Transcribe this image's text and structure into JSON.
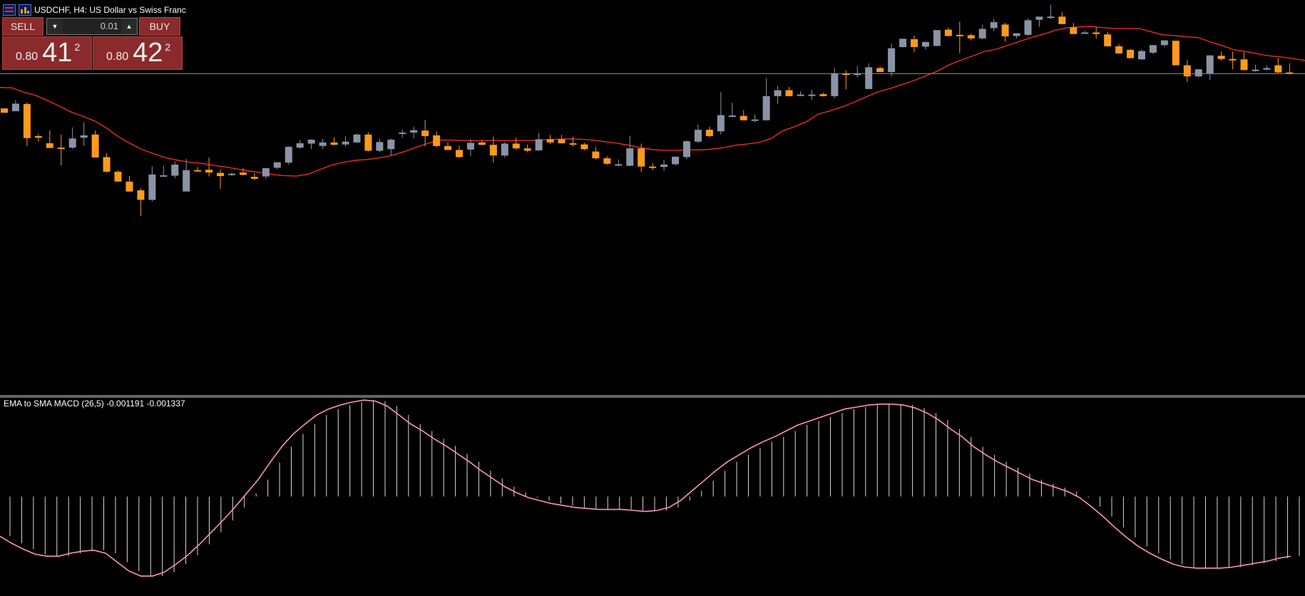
{
  "window": {
    "title": "USDCHF, H4:  US Dollar vs Swiss Franc"
  },
  "trade_panel": {
    "sell_label": "SELL",
    "buy_label": "BUY",
    "lot_value": "0.01",
    "sell_price_small": "0.80",
    "sell_price_big": "41",
    "sell_price_sup": "2",
    "buy_price_small": "0.80",
    "buy_price_big": "42",
    "buy_price_sup": "2"
  },
  "indicator": {
    "label": "EMA to SMA MACD (26,5) -0.001191 -0.001337"
  },
  "colors": {
    "bull": "#8a94a6",
    "bear": "#ff9a1a",
    "ma": "#ff2a2a",
    "signal": "#ff8fc8",
    "histogram": "#d8d8d8",
    "bid_line": "#8c96a8"
  },
  "chart_data": [
    {
      "type": "candlestick",
      "ylim": [
        -1000,
        0
      ],
      "note": "price scale not shown",
      "bid_line": -186,
      "candles": [
        {
          "o": -274,
          "h": -274,
          "l": -285,
          "c": -285
        },
        {
          "o": -281,
          "h": -253,
          "l": -281,
          "c": -262
        },
        {
          "o": -263,
          "h": -259,
          "l": -369,
          "c": -349
        },
        {
          "o": -344,
          "h": -339,
          "l": -358,
          "c": -348
        },
        {
          "o": -362,
          "h": -329,
          "l": -372,
          "c": -374
        },
        {
          "o": -373,
          "h": -340,
          "l": -418,
          "c": -374
        },
        {
          "o": -373,
          "h": -322,
          "l": -377,
          "c": -350
        },
        {
          "o": -348,
          "h": -309,
          "l": -369,
          "c": -342
        },
        {
          "o": -340,
          "h": -330,
          "l": -397,
          "c": -398
        },
        {
          "o": -397,
          "h": -387,
          "l": -436,
          "c": -434
        },
        {
          "o": -434,
          "h": -431,
          "l": -457,
          "c": -459
        },
        {
          "o": -459,
          "h": -445,
          "l": -485,
          "c": -484
        },
        {
          "o": -481,
          "h": -476,
          "l": -546,
          "c": -505
        },
        {
          "o": -505,
          "h": -420,
          "l": -509,
          "c": -441
        },
        {
          "o": -443,
          "h": -419,
          "l": -444,
          "c": -443
        },
        {
          "o": -444,
          "h": -408,
          "l": -450,
          "c": -416
        },
        {
          "o": -484,
          "h": -402,
          "l": -484,
          "c": -430
        },
        {
          "o": -430,
          "h": -422,
          "l": -433,
          "c": -431
        },
        {
          "o": -429,
          "h": -398,
          "l": -446,
          "c": -436
        },
        {
          "o": -437,
          "h": -428,
          "l": -477,
          "c": -445
        },
        {
          "o": -439,
          "h": -436,
          "l": -445,
          "c": -439
        },
        {
          "o": -436,
          "h": -425,
          "l": -443,
          "c": -442
        },
        {
          "o": -447,
          "h": -437,
          "l": -455,
          "c": -452
        },
        {
          "o": -446,
          "h": -424,
          "l": -452,
          "c": -425
        },
        {
          "o": -424,
          "h": -410,
          "l": -428,
          "c": -410
        },
        {
          "o": -411,
          "h": -370,
          "l": -416,
          "c": -371
        },
        {
          "o": -373,
          "h": -354,
          "l": -376,
          "c": -362
        },
        {
          "o": -363,
          "h": -352,
          "l": -377,
          "c": -353
        },
        {
          "o": -369,
          "h": -351,
          "l": -377,
          "c": -360
        },
        {
          "o": -360,
          "h": -347,
          "l": -368,
          "c": -366
        },
        {
          "o": -365,
          "h": -344,
          "l": -370,
          "c": -358
        },
        {
          "o": -360,
          "h": -338,
          "l": -361,
          "c": -340
        },
        {
          "o": -340,
          "h": -334,
          "l": -383,
          "c": -381
        },
        {
          "o": -381,
          "h": -351,
          "l": -385,
          "c": -359
        },
        {
          "o": -377,
          "h": -350,
          "l": -394,
          "c": -353
        },
        {
          "o": -337,
          "h": -327,
          "l": -348,
          "c": -335
        },
        {
          "o": -335,
          "h": -320,
          "l": -350,
          "c": -329
        },
        {
          "o": -330,
          "h": -303,
          "l": -370,
          "c": -344
        },
        {
          "o": -342,
          "h": -332,
          "l": -372,
          "c": -369
        },
        {
          "o": -369,
          "h": -359,
          "l": -377,
          "c": -379
        },
        {
          "o": -379,
          "h": -368,
          "l": -399,
          "c": -397
        },
        {
          "o": -378,
          "h": -351,
          "l": -395,
          "c": -361
        },
        {
          "o": -360,
          "h": -355,
          "l": -368,
          "c": -366
        },
        {
          "o": -366,
          "h": -345,
          "l": -411,
          "c": -393
        },
        {
          "o": -393,
          "h": -359,
          "l": -398,
          "c": -363
        },
        {
          "o": -363,
          "h": -348,
          "l": -379,
          "c": -375
        },
        {
          "o": -375,
          "h": -365,
          "l": -385,
          "c": -381
        },
        {
          "o": -380,
          "h": -336,
          "l": -382,
          "c": -352
        },
        {
          "o": -352,
          "h": -341,
          "l": -364,
          "c": -360
        },
        {
          "o": -352,
          "h": -341,
          "l": -363,
          "c": -362
        },
        {
          "o": -362,
          "h": -346,
          "l": -370,
          "c": -363
        },
        {
          "o": -365,
          "h": -361,
          "l": -380,
          "c": -377
        },
        {
          "o": -383,
          "h": -372,
          "l": -403,
          "c": -400
        },
        {
          "o": -400,
          "h": -395,
          "l": -416,
          "c": -414
        },
        {
          "o": -415,
          "h": -403,
          "l": -421,
          "c": -415
        },
        {
          "o": -419,
          "h": -343,
          "l": -420,
          "c": -375
        },
        {
          "o": -375,
          "h": -363,
          "l": -435,
          "c": -421
        },
        {
          "o": -421,
          "h": -412,
          "l": -430,
          "c": -422
        },
        {
          "o": -422,
          "h": -404,
          "l": -432,
          "c": -416
        },
        {
          "o": -415,
          "h": -400,
          "l": -418,
          "c": -396
        },
        {
          "o": -397,
          "h": -355,
          "l": -402,
          "c": -357
        },
        {
          "o": -358,
          "h": -315,
          "l": -361,
          "c": -328
        },
        {
          "o": -328,
          "h": -320,
          "l": -347,
          "c": -344
        },
        {
          "o": -332,
          "h": -233,
          "l": -340,
          "c": -291
        },
        {
          "o": -292,
          "h": -260,
          "l": -293,
          "c": -292
        },
        {
          "o": -293,
          "h": -278,
          "l": -304,
          "c": -304
        },
        {
          "o": -302,
          "h": -289,
          "l": -309,
          "c": -302
        },
        {
          "o": -304,
          "h": -197,
          "l": -304,
          "c": -243
        },
        {
          "o": -243,
          "h": -217,
          "l": -262,
          "c": -228
        },
        {
          "o": -228,
          "h": -220,
          "l": -243,
          "c": -243
        },
        {
          "o": -239,
          "h": -231,
          "l": -243,
          "c": -239
        },
        {
          "o": -239,
          "h": -227,
          "l": -252,
          "c": -239
        },
        {
          "o": -238,
          "h": -234,
          "l": -244,
          "c": -243
        },
        {
          "o": -243,
          "h": -172,
          "l": -248,
          "c": -186
        },
        {
          "o": -186,
          "h": -178,
          "l": -226,
          "c": -188
        },
        {
          "o": -188,
          "h": -167,
          "l": -196,
          "c": -186
        },
        {
          "o": -225,
          "h": -160,
          "l": -225,
          "c": -170
        },
        {
          "o": -172,
          "h": -168,
          "l": -181,
          "c": -182
        },
        {
          "o": -182,
          "h": -110,
          "l": -193,
          "c": -122
        },
        {
          "o": -119,
          "h": -98,
          "l": -120,
          "c": -98
        },
        {
          "o": -99,
          "h": -90,
          "l": -132,
          "c": -119
        },
        {
          "o": -118,
          "h": -108,
          "l": -125,
          "c": -106
        },
        {
          "o": -116,
          "h": -80,
          "l": -117,
          "c": -76
        },
        {
          "o": -75,
          "h": -70,
          "l": -92,
          "c": -91
        },
        {
          "o": -88,
          "h": -55,
          "l": -134,
          "c": -89
        },
        {
          "o": -89,
          "h": -85,
          "l": -102,
          "c": -97
        },
        {
          "o": -97,
          "h": -62,
          "l": -100,
          "c": -73
        },
        {
          "o": -71,
          "h": -47,
          "l": -79,
          "c": -56
        },
        {
          "o": -62,
          "h": -58,
          "l": -105,
          "c": -92
        },
        {
          "o": -91,
          "h": -85,
          "l": -97,
          "c": -84
        },
        {
          "o": -88,
          "h": -47,
          "l": -90,
          "c": -51
        },
        {
          "o": -50,
          "h": -43,
          "l": -68,
          "c": -42
        },
        {
          "o": -43,
          "h": -12,
          "l": -48,
          "c": -42
        },
        {
          "o": -42,
          "h": -30,
          "l": -58,
          "c": -61
        },
        {
          "o": -69,
          "h": -58,
          "l": -85,
          "c": -86
        },
        {
          "o": -83,
          "h": -78,
          "l": -85,
          "c": -82
        },
        {
          "o": -82,
          "h": -68,
          "l": -98,
          "c": -86
        },
        {
          "o": -87,
          "h": -80,
          "l": -118,
          "c": -117
        },
        {
          "o": -117,
          "h": -112,
          "l": -136,
          "c": -135
        },
        {
          "o": -126,
          "h": -124,
          "l": -147,
          "c": -147
        },
        {
          "o": -150,
          "h": -125,
          "l": -151,
          "c": -129
        },
        {
          "o": -133,
          "h": -114,
          "l": -137,
          "c": -114
        },
        {
          "o": -114,
          "h": -105,
          "l": -118,
          "c": -102
        },
        {
          "o": -103,
          "h": -103,
          "l": -165,
          "c": -165
        },
        {
          "o": -165,
          "h": -152,
          "l": -207,
          "c": -193
        },
        {
          "o": -193,
          "h": -178,
          "l": -196,
          "c": -175
        },
        {
          "o": -186,
          "h": -140,
          "l": -202,
          "c": -140
        },
        {
          "o": -141,
          "h": -130,
          "l": -153,
          "c": -149
        },
        {
          "o": -149,
          "h": -130,
          "l": -175,
          "c": -150
        },
        {
          "o": -150,
          "h": -132,
          "l": -178,
          "c": -177
        },
        {
          "o": -176,
          "h": -164,
          "l": -181,
          "c": -176
        },
        {
          "o": -176,
          "h": -165,
          "l": -178,
          "c": -172
        },
        {
          "o": -165,
          "h": -146,
          "l": -185,
          "c": -183
        },
        {
          "o": -183,
          "h": -160,
          "l": -188,
          "c": -187
        }
      ],
      "moving_average": [
        -221,
        -222,
        -233,
        -241,
        -254,
        -268,
        -283,
        -294,
        -306,
        -324,
        -346,
        -363,
        -378,
        -389,
        -399,
        -405,
        -410,
        -413,
        -418,
        -422,
        -427,
        -432,
        -436,
        -441,
        -444,
        -445,
        -440,
        -428,
        -417,
        -410,
        -405,
        -403,
        -399,
        -393,
        -384,
        -373,
        -363,
        -354,
        -354,
        -355,
        -356,
        -355,
        -355,
        -356,
        -355,
        -355,
        -353,
        -352,
        -351,
        -352,
        -354,
        -358,
        -362,
        -367,
        -373,
        -378,
        -380,
        -380,
        -379,
        -379,
        -377,
        -373,
        -367,
        -364,
        -360,
        -350,
        -330,
        -320,
        -307,
        -288,
        -280,
        -270,
        -258,
        -245,
        -232,
        -224,
        -214,
        -204,
        -192,
        -180,
        -164,
        -152,
        -141,
        -130,
        -124,
        -114,
        -104,
        -94,
        -86,
        -76,
        -70,
        -68,
        -67,
        -70,
        -72,
        -72,
        -72,
        -80,
        -88,
        -90,
        -93,
        -95,
        -106,
        -115,
        -126,
        -130,
        -136,
        -141,
        -144,
        -148,
        -153
      ]
    },
    {
      "type": "bar+line",
      "title": "EMA to SMA MACD (26,5) -0.001191 -0.001337",
      "baseline": 0,
      "ylim": [
        -100,
        100
      ],
      "histogram_values": [
        -88,
        -88,
        -88,
        -88,
        -88,
        -88,
        -88,
        -88,
        -88,
        -88,
        -88,
        -88,
        -88,
        -88,
        -88,
        -88,
        -88,
        -88,
        -88,
        -88,
        -88,
        -88,
        -88,
        -88,
        -88,
        -88,
        -88,
        -88,
        -88,
        -88,
        -88,
        -88,
        -88,
        -88,
        -88,
        -88,
        -88,
        -88,
        -88,
        -88,
        -88,
        -88,
        -88,
        -88,
        -88,
        -88,
        -88,
        -88,
        -88,
        -88,
        -88,
        -88,
        -88,
        -88,
        -88,
        -88,
        -88,
        -88,
        -88,
        -88,
        -88,
        -88,
        -88,
        -88,
        -88,
        -88,
        -88,
        -88,
        -88,
        -88,
        -88,
        -88,
        -88,
        -88,
        -88,
        -88,
        -88,
        -88,
        -88,
        -88,
        -88,
        -88,
        -88,
        -88,
        -88,
        -88,
        -88,
        -88,
        -88,
        -88,
        -88,
        -88,
        -88,
        -88,
        -88,
        -88,
        -88,
        -88,
        -88,
        -88,
        -88,
        -88,
        -88,
        -88,
        -88,
        -88,
        -88,
        -88,
        -88,
        -88,
        -88,
        -88
      ],
      "signal_line": [
        -40,
        -47,
        -53,
        -58,
        -60,
        -60,
        -57,
        -55,
        -54,
        -57,
        -66,
        -75,
        -80,
        -80,
        -76,
        -68,
        -59,
        -48,
        -36,
        -24,
        -11,
        3,
        17,
        34,
        50,
        63,
        73,
        82,
        88,
        92,
        95,
        97,
        96,
        91,
        82,
        73,
        66,
        58,
        51,
        43,
        35,
        26,
        18,
        10,
        4,
        -1,
        -4,
        -7,
        -9,
        -11,
        -12,
        -13,
        -13,
        -13,
        -14,
        -15,
        -14,
        -11,
        -4,
        6,
        16,
        26,
        35,
        42,
        49,
        55,
        60,
        66,
        72,
        76,
        80,
        84,
        88,
        90,
        92,
        93,
        93,
        92,
        89,
        84,
        77,
        68,
        60,
        50,
        42,
        35,
        29,
        23,
        17,
        13,
        9,
        5,
        -1,
        -10,
        -20,
        -31,
        -41,
        -50,
        -57,
        -63,
        -68,
        -71,
        -72,
        -72,
        -72,
        -71,
        -69,
        -67,
        -65,
        -62,
        -60
      ]
    }
  ]
}
